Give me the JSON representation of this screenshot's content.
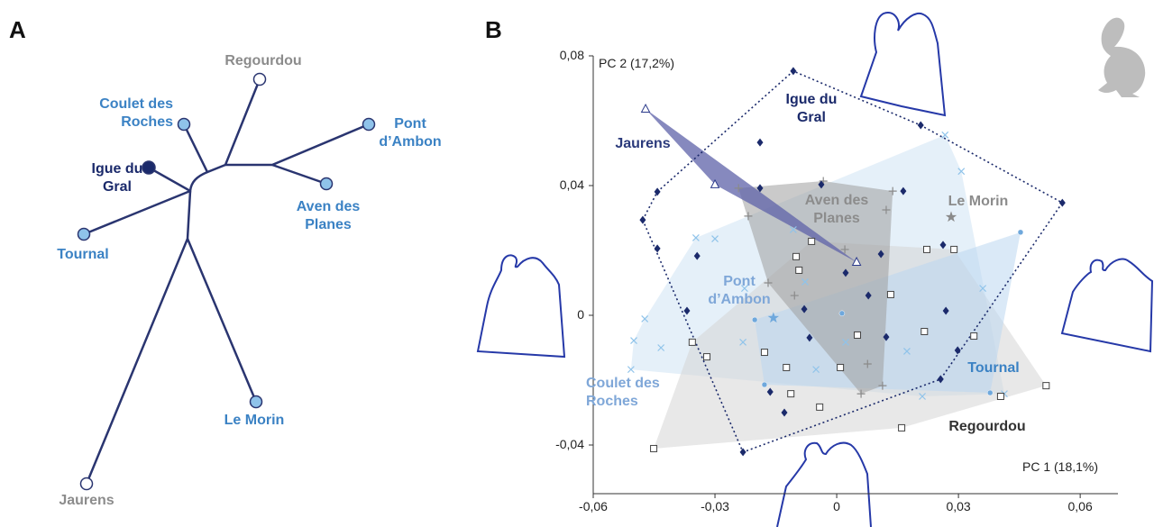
{
  "panel_labels": [
    "A",
    "B"
  ],
  "tree": {
    "nodes": [
      {
        "label": "Regourdou"
      },
      {
        "label": "Coulet des Roches"
      },
      {
        "label": "Pont d’Ambon"
      },
      {
        "label": "Igue du Gral"
      },
      {
        "label": "Aven des Planes"
      },
      {
        "label": "Tournal"
      },
      {
        "label": "Le Morin"
      },
      {
        "label": "Jaurens"
      }
    ]
  },
  "chart_data": {
    "type": "scatter",
    "x_label": "PC 1 (18,1%)",
    "y_label": "PC 2 (17,2%)",
    "xlim": [
      -0.06,
      0.0693
    ],
    "ylim": [
      -0.055,
      0.08
    ],
    "xticks": [
      {
        "value": -0.06,
        "label": "-0,06"
      },
      {
        "value": -0.03,
        "label": "-0,03"
      },
      0,
      {
        "value": 0.03,
        "label": "0,03"
      },
      {
        "value": 0.06,
        "label": "0,06"
      }
    ],
    "yticks": [
      {
        "value": -0.04,
        "label": "-0,04"
      },
      0,
      {
        "value": 0.04,
        "label": "0,04"
      },
      {
        "value": 0.08,
        "label": "0,08"
      }
    ],
    "series": [
      {
        "name": "Coulet des Roches",
        "color": "#8fc3ea",
        "marker": "x",
        "hull": "filled",
        "hull_color": "#cfe3f4",
        "label_color": "#7fa7d8",
        "x": [
          -0.0473,
          -0.05,
          -0.0433,
          -0.0347,
          -0.03,
          -0.0107,
          -0.0078,
          -0.0051,
          0.0211,
          0.0267,
          0.0307,
          0.036,
          0.0413,
          -0.0231,
          0.0022,
          -0.0227,
          0.0173,
          -0.0507
        ],
        "values": [
          -0.0011,
          -0.0078,
          -0.01,
          0.0239,
          0.0236,
          0.0264,
          0.0103,
          -0.0167,
          -0.025,
          0.0556,
          0.0444,
          0.0083,
          -0.0242,
          -0.0083,
          -0.0083,
          0.0083,
          -0.0111,
          -0.0167
        ]
      },
      {
        "name": "Regourdou",
        "color": "#444444",
        "marker": "square",
        "hull": "filled",
        "hull_color": "#d6d6d6",
        "label_color": "#333333",
        "x": [
          -0.0451,
          -0.0356,
          -0.032,
          -0.0062,
          -0.01,
          -0.0093,
          -0.0178,
          -0.0113,
          -0.0042,
          0.0009,
          0.0051,
          0.0133,
          0.0222,
          0.0289,
          0.0216,
          0.0338,
          0.0404,
          0.0516,
          0.016,
          -0.0124
        ],
        "values": [
          -0.0411,
          -0.0083,
          -0.0128,
          0.0228,
          0.0181,
          0.0139,
          -0.0114,
          -0.0242,
          -0.0283,
          -0.0161,
          -0.0061,
          0.0064,
          0.0203,
          0.0203,
          -0.005,
          -0.0064,
          -0.025,
          -0.0217,
          -0.0347,
          -0.0161
        ]
      },
      {
        "name": "Tournal",
        "color": "#6fa8dc",
        "marker": "circle",
        "hull": "filled",
        "hull_color": "#bcd7f0",
        "label_color": "#3b82c4",
        "x": [
          0.0453,
          0.0013,
          -0.0178,
          0.0378,
          -0.0202
        ],
        "values": [
          0.0256,
          0.0006,
          -0.0214,
          -0.0239,
          -0.0014
        ]
      },
      {
        "name": "Aven des Planes",
        "color": "#8a8a8a",
        "marker": "plus",
        "hull": "filled",
        "hull_color": "#9e9e9e",
        "label_color": "#8c8c8c",
        "x": [
          -0.0242,
          -0.0218,
          -0.0033,
          0.0138,
          0.002,
          0.0122,
          -0.0104,
          -0.0169,
          0.0076,
          0.006,
          0.0113
        ],
        "values": [
          0.0392,
          0.0306,
          0.0414,
          0.0383,
          0.0203,
          0.0325,
          0.0061,
          0.01,
          -0.015,
          -0.0242,
          -0.0217
        ]
      },
      {
        "name": "Jaurens",
        "color": "#2b3a8b",
        "marker": "triangle",
        "hull": "filled",
        "hull_color": "#5d62a8",
        "label_color": "#2b3a7b",
        "x": [
          -0.0471,
          -0.03,
          0.0049
        ],
        "values": [
          0.0636,
          0.0403,
          0.0164
        ]
      },
      {
        "name": "Igue du Gral",
        "color": "#1b2a6b",
        "marker": "diamond",
        "hull": "dotted",
        "hull_color": "#1b2a6b",
        "label_color": "#1b2a6b",
        "x": [
          -0.0107,
          -0.0189,
          -0.0442,
          -0.0478,
          -0.0442,
          -0.0369,
          -0.0344,
          -0.0189,
          -0.0038,
          0.0164,
          0.0207,
          0.0556,
          0.0078,
          0.0109,
          0.0262,
          0.0269,
          -0.008,
          0.0022,
          0.0122,
          0.0298,
          0.0256,
          -0.0067,
          -0.0164,
          -0.0129,
          -0.0231
        ],
        "values": [
          0.0753,
          0.0533,
          0.0381,
          0.0294,
          0.0206,
          0.0014,
          0.0183,
          0.0392,
          0.0403,
          0.0383,
          0.0586,
          0.0347,
          0.0061,
          0.0189,
          0.0217,
          0.0014,
          0.0019,
          0.0131,
          -0.0067,
          -0.0108,
          -0.0197,
          -0.0069,
          -0.0236,
          -0.03,
          -0.0422
        ]
      },
      {
        "name": "Le Morin",
        "color": "#8a8a8a",
        "marker": "star",
        "hull": "none",
        "hull_color": "#8a8a8a",
        "label_color": "#8c8c8c",
        "x": [
          0.0282
        ],
        "values": [
          0.0303
        ]
      },
      {
        "name": "Pont d’Ambon",
        "color": "#6fa8dc",
        "marker": "star",
        "hull": "none",
        "hull_color": "#6fa8dc",
        "label_color": "#7fa7d8",
        "x": [
          -0.0156
        ],
        "values": [
          -0.0008
        ]
      }
    ]
  }
}
